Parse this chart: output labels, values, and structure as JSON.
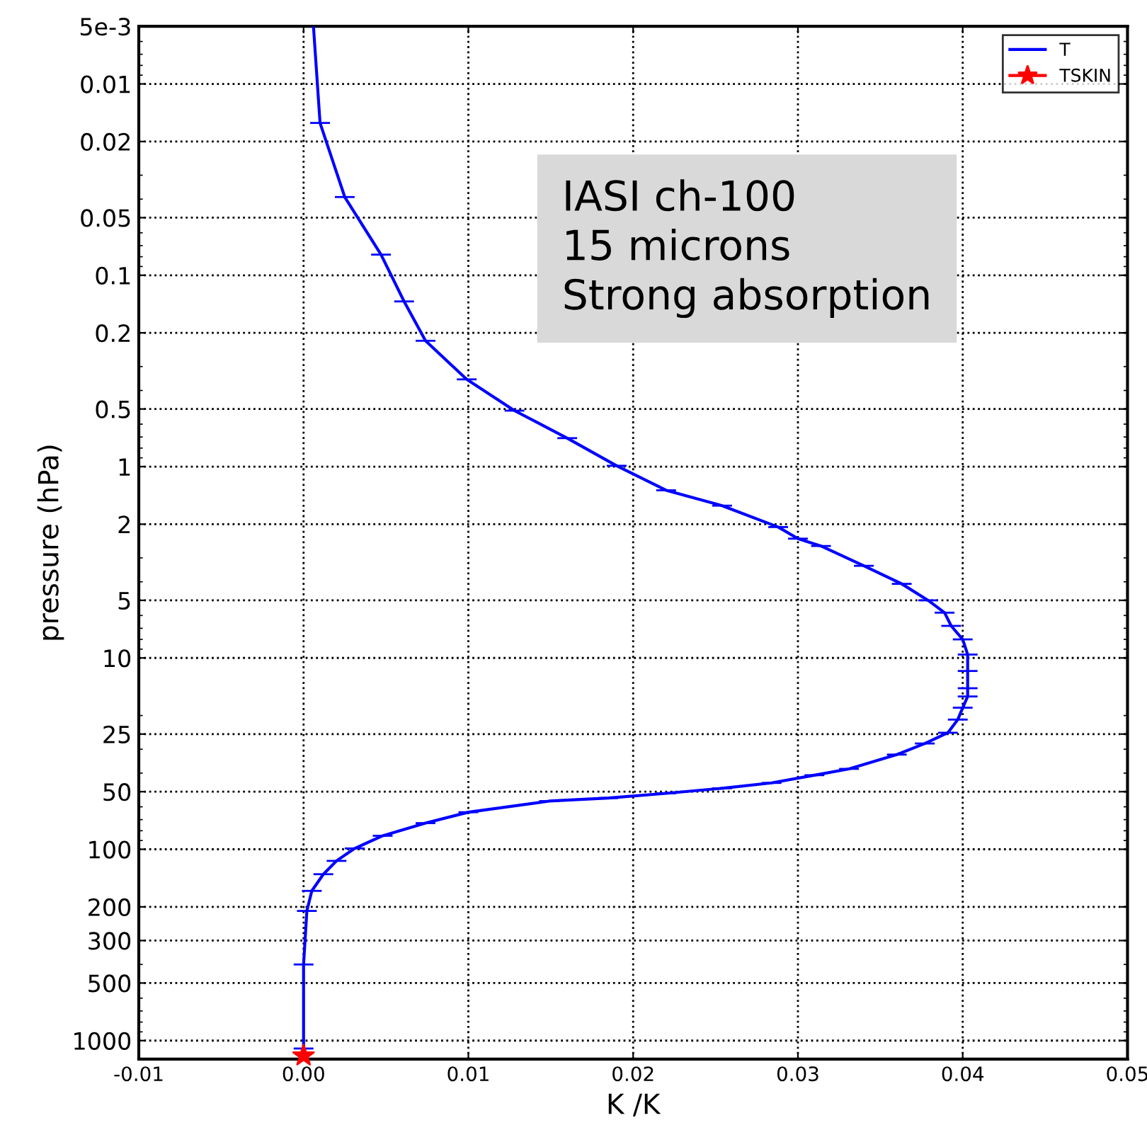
{
  "chart_data": {
    "type": "line",
    "xlabel": "K /K",
    "ylabel": "pressure (hPa)",
    "annotations": [
      "IASI ch-100\n15 microns\nStrong absorption"
    ],
    "series": [
      {
        "name": "T",
        "color": "#0000ff",
        "xerrors": [
          null,
          0.0006,
          0.0006,
          0.0006,
          0.0006,
          0.0006,
          0.0006,
          0.0006,
          0.0006,
          0.0006,
          0.0006,
          0.0006,
          0.0006,
          0.0006,
          0.0006,
          0.0006,
          0.0006,
          0.0006,
          0.0006,
          0.0006,
          0.0006,
          0.0006,
          0.0006,
          0.0006,
          0.0006,
          0.0006,
          0.0006,
          0.0006,
          0.0006,
          0.0006,
          0.0006,
          0.0006,
          0.0006,
          0.0006,
          0.0006,
          0.0006,
          0.0006,
          0.0006,
          0.0006,
          0.0006,
          0.0006,
          0.0006,
          0.0006,
          0.0006,
          0.0006,
          0.0006,
          0.0006
        ],
        "x": [
          0.0006,
          0.001,
          0.0025,
          0.0047,
          0.0061,
          0.0074,
          0.0099,
          0.0128,
          0.016,
          0.019,
          0.022,
          0.0254,
          0.0288,
          0.03,
          0.0314,
          0.034,
          0.0363,
          0.0379,
          0.0389,
          0.0393,
          0.04,
          0.0403,
          0.0403,
          0.0403,
          0.0403,
          0.04,
          0.0397,
          0.0391,
          0.0377,
          0.036,
          0.0331,
          0.031,
          0.0284,
          0.0254,
          0.022,
          0.0185,
          0.0149,
          0.01,
          0.0074,
          0.0048,
          0.0031,
          0.002,
          0.0012,
          0.0005,
          0.0002,
          0.0,
          0.0
        ],
        "values": [
          0.005,
          0.016,
          0.039,
          0.078,
          0.137,
          0.22,
          0.35,
          0.51,
          0.71,
          0.99,
          1.33,
          1.6,
          2.07,
          2.38,
          2.6,
          3.3,
          4.1,
          5,
          5.8,
          6.8,
          8.0,
          9.6,
          11.7,
          14.4,
          15.9,
          18.2,
          21,
          24.6,
          28,
          32,
          38,
          41,
          45,
          48,
          51,
          54,
          56,
          64,
          73,
          85,
          99,
          115,
          135,
          165,
          210,
          400,
          1100
        ]
      },
      {
        "name": "TSKIN",
        "type": "scatter",
        "color": "#ff0000",
        "marker": "star",
        "x": [
          0.0
        ],
        "values": [
          1200
        ]
      }
    ],
    "xlim": [
      -0.01,
      0.05
    ],
    "xticks": [
      -0.01,
      {
        "value": 0,
        "label": "0.00"
      },
      0.01,
      0.02,
      0.03,
      0.04,
      0.05
    ],
    "ylim": [
      1250,
      0.005
    ],
    "yticks": [
      {
        "value": 0.005,
        "label": "5e-3"
      },
      0.01,
      0.02,
      0.05,
      0.1,
      0.2,
      0.5,
      1,
      2,
      5,
      10,
      25,
      50,
      100,
      200,
      300,
      500,
      1000
    ],
    "log": "y",
    "grid": true,
    "legend": "top right",
    "line_style": "solid"
  }
}
